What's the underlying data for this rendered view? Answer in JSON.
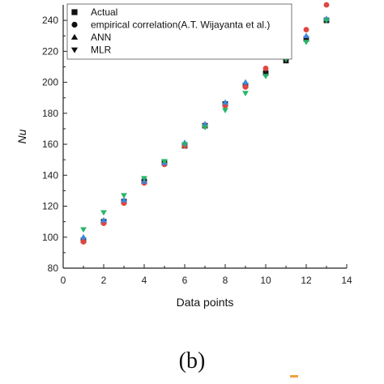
{
  "panel_label": "(b)",
  "colors": {
    "axis": "#222222",
    "legend_marker": "#111111",
    "corner_mark": "#f0a040"
  },
  "chart_data": {
    "type": "scatter",
    "title": "",
    "xlabel": "Data points",
    "ylabel": "Nu",
    "xlim": [
      0,
      14
    ],
    "ylim": [
      80,
      250
    ],
    "xticks": [
      0,
      2,
      4,
      6,
      8,
      10,
      12,
      14
    ],
    "yticks": [
      80,
      100,
      120,
      140,
      160,
      180,
      200,
      220,
      240
    ],
    "grid": false,
    "legend_position": "top-left",
    "series": [
      {
        "name": "Actual",
        "marker": "square",
        "color": "#1a1a1a",
        "x": [
          1,
          2,
          3,
          4,
          5,
          6,
          7,
          8,
          9,
          10,
          11,
          12,
          13
        ],
        "y": [
          98,
          110,
          123,
          136,
          148,
          159,
          172,
          186,
          198,
          206,
          214,
          228,
          240
        ]
      },
      {
        "name": "empirical correlation(A.T. Wijayanta et al.)",
        "marker": "circle",
        "color": "#e0453f",
        "x": [
          1,
          2,
          3,
          4,
          5,
          6,
          7,
          8,
          9,
          10,
          11,
          12,
          13
        ],
        "y": [
          97,
          109,
          122,
          135,
          147,
          159,
          172,
          185,
          197,
          209,
          221,
          234,
          250
        ]
      },
      {
        "name": "ANN",
        "marker": "triangle-up",
        "color": "#3a86e0",
        "x": [
          1,
          2,
          3,
          4,
          5,
          6,
          7,
          8,
          9,
          10,
          11,
          12,
          13
        ],
        "y": [
          100,
          111,
          124,
          136,
          148,
          161,
          173,
          187,
          200,
          217,
          227,
          230,
          241
        ]
      },
      {
        "name": "MLR",
        "marker": "triangle-down",
        "color": "#27b56a",
        "x": [
          1,
          2,
          3,
          4,
          5,
          6,
          7,
          8,
          9,
          10,
          11,
          12,
          13
        ],
        "y": [
          105,
          116,
          127,
          138,
          149,
          160,
          171,
          182,
          193,
          204,
          215,
          226,
          240
        ]
      }
    ]
  }
}
